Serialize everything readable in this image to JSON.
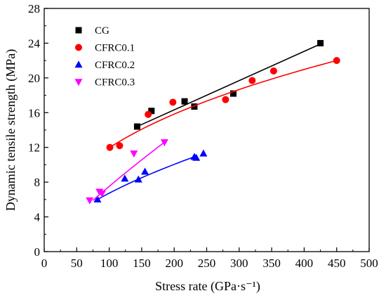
{
  "chart_data": {
    "type": "scatter",
    "xlabel": "Stress rate (GPa·s⁻¹)",
    "ylabel": "Dynamic tensile strength (MPa)",
    "xlim": [
      0,
      500
    ],
    "ylim": [
      0,
      28
    ],
    "xticks": [
      0,
      50,
      100,
      150,
      200,
      250,
      300,
      350,
      400,
      450,
      500
    ],
    "yticks": [
      0,
      4,
      8,
      12,
      16,
      20,
      24,
      28
    ],
    "grid": false,
    "legend_position": "top-left",
    "series": [
      {
        "name": "CG",
        "marker": "square",
        "color": "#000000",
        "points": [
          [
            143,
            14.4
          ],
          [
            165,
            16.2
          ],
          [
            216,
            17.3
          ],
          [
            231,
            16.7
          ],
          [
            291,
            18.2
          ],
          [
            425,
            24.0
          ]
        ],
        "fit": {
          "type": "linear",
          "x_range": [
            143,
            425
          ],
          "start": [
            143,
            14.4
          ],
          "end": [
            425,
            23.9
          ]
        }
      },
      {
        "name": "CFRC0.1",
        "marker": "circle",
        "color": "#ff0000",
        "points": [
          [
            101,
            12.0
          ],
          [
            116,
            12.2
          ],
          [
            160,
            15.8
          ],
          [
            198,
            17.2
          ],
          [
            279,
            17.5
          ],
          [
            320,
            19.7
          ],
          [
            353,
            20.8
          ],
          [
            450,
            22.0
          ]
        ],
        "fit": {
          "type": "power",
          "x_range": [
            101,
            450
          ],
          "start": [
            101,
            12.0
          ],
          "end": [
            450,
            22.0
          ]
        }
      },
      {
        "name": "CFRC0.2",
        "marker": "triangle-up",
        "color": "#0000ff",
        "points": [
          [
            82,
            6.0
          ],
          [
            124,
            8.4
          ],
          [
            145,
            8.3
          ],
          [
            155,
            9.2
          ],
          [
            231,
            10.9
          ],
          [
            234,
            10.8
          ],
          [
            245,
            11.3
          ]
        ],
        "fit": {
          "type": "power",
          "x_range": [
            82,
            234
          ],
          "start": [
            82,
            6.0
          ],
          "end": [
            234,
            11.0
          ]
        }
      },
      {
        "name": "CFRC0.3",
        "marker": "triangle-down",
        "color": "#ff00ff",
        "points": [
          [
            70,
            5.9
          ],
          [
            85,
            6.9
          ],
          [
            89,
            6.7
          ],
          [
            138,
            11.3
          ],
          [
            185,
            12.6
          ]
        ],
        "fit": {
          "type": "power",
          "x_range": [
            75,
            185
          ],
          "start": [
            75,
            5.9
          ],
          "end": [
            185,
            12.6
          ]
        }
      }
    ]
  }
}
